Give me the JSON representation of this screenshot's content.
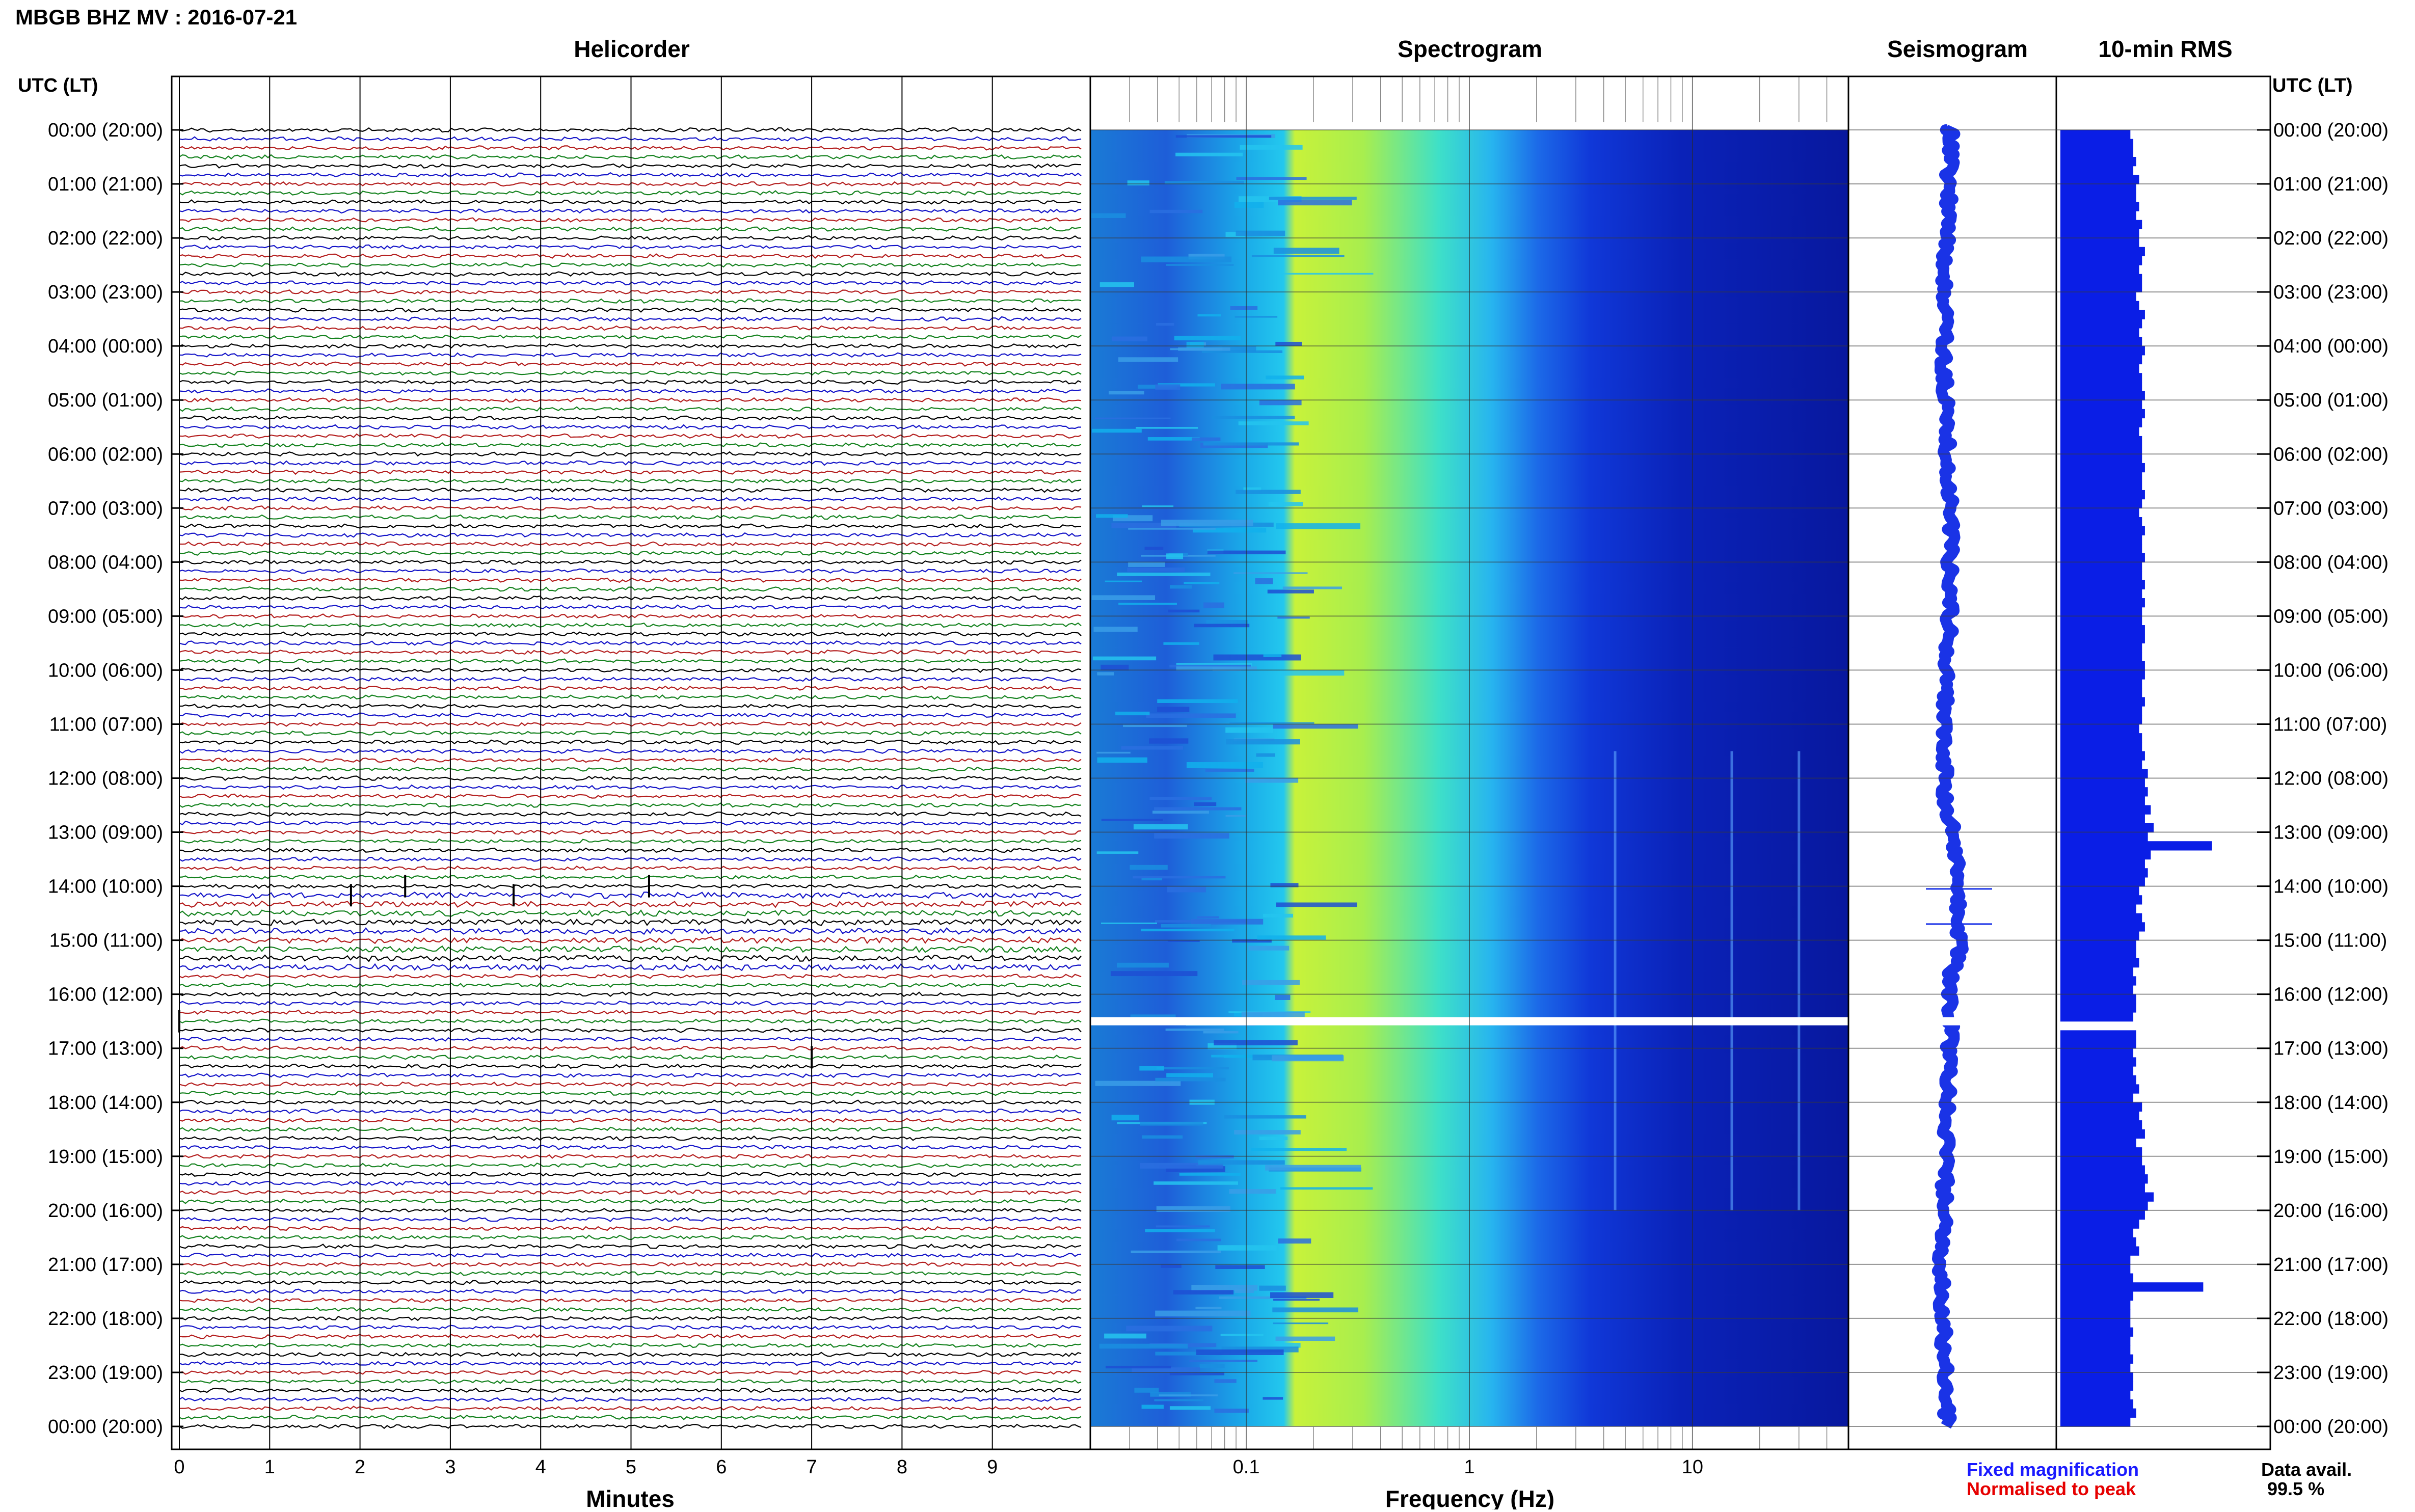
{
  "header": {
    "title": "MBGB BHZ MV : 2016-07-21"
  },
  "panels": {
    "helicorder": "Helicorder",
    "spectrogram": "Spectrogram",
    "seismogram": "Seismogram",
    "rms": "10-min RMS"
  },
  "axis": {
    "time_label": "UTC (LT)",
    "minutes_label": "Minutes",
    "frequency_label": "Frequency (Hz)",
    "hours": [
      "00:00 (20:00)",
      "01:00 (21:00)",
      "02:00 (22:00)",
      "03:00 (23:00)",
      "04:00 (00:00)",
      "05:00 (01:00)",
      "06:00 (02:00)",
      "07:00 (03:00)",
      "08:00 (04:00)",
      "09:00 (05:00)",
      "10:00 (06:00)",
      "11:00 (07:00)",
      "12:00 (08:00)",
      "13:00 (09:00)",
      "14:00 (10:00)",
      "15:00 (11:00)",
      "16:00 (12:00)",
      "17:00 (13:00)",
      "18:00 (14:00)",
      "19:00 (15:00)",
      "20:00 (16:00)",
      "21:00 (17:00)",
      "22:00 (18:00)",
      "23:00 (19:00)",
      "00:00 (20:00)"
    ],
    "minute_ticks": [
      "0",
      "1",
      "2",
      "3",
      "4",
      "5",
      "6",
      "7",
      "8",
      "9"
    ],
    "freq_ticks": [
      "0.1",
      "1",
      "10"
    ]
  },
  "footer": {
    "legend_fixed": "Fixed magnification",
    "legend_normalised": "Normalised to peak",
    "data_avail_label": "Data avail.",
    "data_avail_value": "99.5 %"
  },
  "colors": {
    "trace_cycle": [
      "#000000",
      "#1414c8",
      "#b41e1e",
      "#14821e"
    ],
    "fixed_magnification": "#1a1aff",
    "normalised_to_peak": "#e60000",
    "seismogram": "#1a33e6",
    "rms_bar": "#0a1ee6"
  },
  "chart_data": {
    "type": "helicorder+spectrogram+seismogram+bar",
    "station": "MBGB BHZ MV",
    "date": "2016-07-21",
    "helicorder": {
      "minutes_per_line": 10,
      "lines": 144,
      "events": [
        {
          "time_utc": "14:00",
          "minute": 2.5
        },
        {
          "time_utc": "14:00",
          "minute": 5.2
        },
        {
          "time_utc": "14:10",
          "minute": 1.9
        },
        {
          "time_utc": "14:10",
          "minute": 3.7
        },
        {
          "time_utc": "16:30",
          "minute": 0.0
        },
        {
          "time_utc": "17:10",
          "minute": 7.0
        }
      ],
      "gap": {
        "from_utc": "16:30",
        "to_utc": "16:40"
      }
    },
    "spectrogram": {
      "xscale": "log",
      "xlim_hz": [
        0.02,
        50
      ],
      "dominant_band_hz": [
        0.2,
        1.8
      ],
      "gap_utc": "16:30",
      "tremor_lines_hz": [
        4.5,
        15,
        30
      ]
    },
    "rms_10min": {
      "bins_per_hour": 6,
      "values": [
        2.4,
        2.5,
        2.5,
        2.6,
        2.5,
        2.7,
        2.6,
        2.6,
        2.7,
        2.6,
        2.8,
        2.7,
        2.7,
        2.9,
        2.8,
        2.7,
        2.8,
        2.8,
        2.6,
        2.7,
        2.9,
        2.8,
        2.7,
        2.8,
        2.9,
        2.8,
        2.7,
        2.8,
        2.8,
        2.9,
        2.8,
        2.9,
        2.8,
        2.7,
        2.8,
        2.8,
        2.8,
        2.9,
        2.8,
        2.8,
        2.9,
        2.8,
        2.7,
        2.8,
        2.9,
        2.8,
        2.8,
        2.9,
        2.8,
        2.8,
        2.9,
        2.8,
        2.9,
        2.8,
        2.8,
        2.9,
        2.9,
        2.8,
        2.8,
        2.9,
        2.9,
        2.8,
        2.8,
        2.9,
        2.8,
        2.8,
        2.7,
        2.8,
        2.8,
        2.9,
        2.8,
        3.0,
        2.9,
        3.0,
        2.9,
        3.1,
        2.9,
        3.2,
        3.0,
        5.2,
        3.1,
        2.9,
        3.0,
        2.9,
        2.7,
        2.8,
        2.6,
        2.8,
        2.9,
        2.7,
        2.6,
        2.6,
        2.7,
        2.5,
        2.6,
        2.5,
        2.6,
        2.6,
        2.5,
        0,
        2.6,
        2.6,
        2.5,
        2.6,
        2.5,
        2.6,
        2.7,
        2.5,
        2.8,
        2.7,
        2.8,
        2.9,
        2.6,
        2.8,
        2.8,
        2.9,
        3.0,
        2.9,
        3.2,
        3.0,
        2.9,
        2.7,
        2.5,
        2.6,
        2.7,
        2.4,
        2.4,
        2.5,
        4.9,
        2.5,
        2.4,
        2.4,
        2.4,
        2.5,
        2.4,
        2.4,
        2.5,
        2.4,
        2.5,
        2.5,
        2.4,
        2.5,
        2.6,
        2.4
      ]
    }
  }
}
